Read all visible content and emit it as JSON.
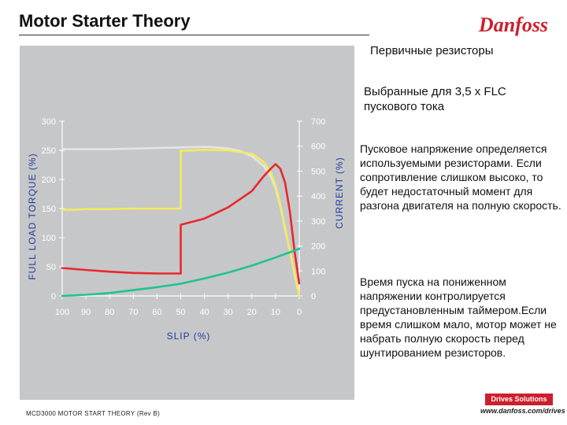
{
  "header": {
    "title": "Motor Starter Theory",
    "brand": "Danfoss"
  },
  "right_panel": {
    "subtitle": "Первичные резисторы",
    "selection_note": "Выбранные для 3,5 x FLC пускового тока",
    "paragraph_1": "Пусковое напряжение определяется используемыми резисторами. Если сопротивление слишком высоко, то будет недостаточный момент для разгона двигателя на полную скорость.",
    "paragraph_2": "Время пуска на пониженном напряжении контролируется предустановленным таймером.Если время слишком мало, мотор может не набрать полную скорость перед шунтированием резисторов."
  },
  "footer": {
    "doc_id": "MCD3000 MOTOR START THEORY (Rev B)",
    "drives_solutions": "Drives Solutions",
    "url": "www.danfoss.com/drives"
  },
  "colors": {
    "chart_background": "#c6c7c9",
    "torque_curve": "#e5e5e5",
    "current_curve": "#e8282b",
    "reduced_torque": "#f2ec5c",
    "load_curve": "#1fc38e",
    "axis_text": "#ffffff",
    "axis_title": "#1d3da0",
    "brand_red": "#cc1f2d"
  },
  "chart_data": {
    "type": "line",
    "xlabel": "SLIP (%)",
    "ylabel_left": "FULL LOAD TORQUE (%)",
    "ylabel_right": "CURRENT (%)",
    "x_ticks": [
      "100",
      "90",
      "80",
      "70",
      "60",
      "50",
      "40",
      "30",
      "20",
      "10",
      "0"
    ],
    "y_left_ticks": [
      "0",
      "50",
      "100",
      "150",
      "200",
      "250",
      "300"
    ],
    "y_right_ticks": [
      "0",
      "100",
      "200",
      "300",
      "400",
      "500",
      "600",
      "700"
    ],
    "xlim": [
      100,
      0
    ],
    "ylim_left": [
      0,
      300
    ],
    "ylim_right": [
      0,
      700
    ],
    "grid": false,
    "series": [
      {
        "axis": "left",
        "color_key": "torque_curve",
        "x": [
          100,
          90,
          80,
          70,
          60,
          50,
          40,
          35,
          30,
          25,
          20,
          15,
          12,
          10,
          8,
          6,
          4,
          2,
          0
        ],
        "y": [
          252,
          252,
          252,
          253,
          254,
          255,
          256,
          255,
          253,
          249,
          240,
          223,
          205,
          185,
          155,
          115,
          78,
          38,
          0
        ]
      },
      {
        "axis": "left",
        "color_key": "reduced_torque",
        "x": [
          100,
          95,
          90,
          80,
          70,
          60,
          50,
          50,
          40,
          30,
          20,
          15,
          12,
          10,
          8,
          6,
          4,
          2,
          0
        ],
        "y": [
          148,
          148,
          149,
          149,
          150,
          150,
          150,
          249,
          251,
          250,
          244,
          230,
          212,
          190,
          158,
          118,
          78,
          38,
          0
        ]
      },
      {
        "axis": "right",
        "color_key": "current_curve",
        "x": [
          100,
          90,
          80,
          70,
          60,
          50,
          50,
          40,
          30,
          20,
          15,
          12,
          10,
          8,
          6,
          4,
          2,
          0
        ],
        "y": [
          112,
          104,
          97,
          92,
          90,
          90,
          285,
          310,
          355,
          420,
          480,
          510,
          528,
          510,
          455,
          340,
          180,
          50
        ]
      },
      {
        "axis": "left",
        "color_key": "load_curve",
        "x": [
          100,
          90,
          80,
          70,
          60,
          50,
          40,
          30,
          20,
          10,
          0
        ],
        "y": [
          0,
          2,
          5,
          10,
          15,
          21,
          30,
          40,
          52,
          66,
          81
        ]
      }
    ]
  }
}
